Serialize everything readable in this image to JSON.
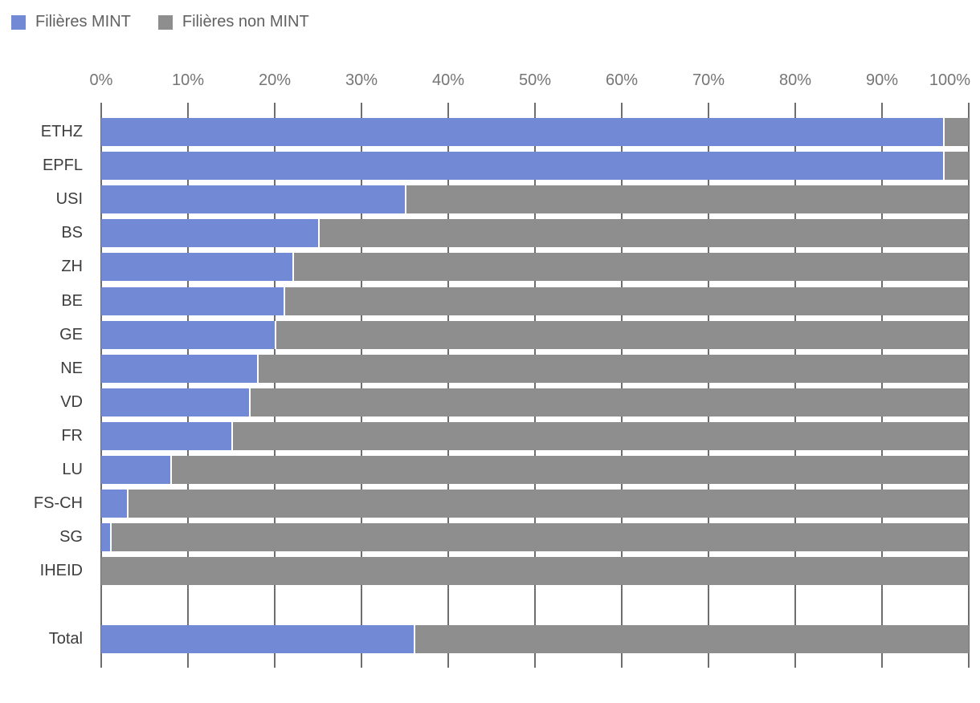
{
  "legend": {
    "items": [
      {
        "label": "Filières MINT",
        "color": "#7289d6"
      },
      {
        "label": "Filières non MINT",
        "color": "#8e8e8e"
      }
    ]
  },
  "chart_data": {
    "type": "bar",
    "orientation": "horizontal",
    "stacked": true,
    "unit": "%",
    "title": "",
    "categories": [
      "ETHZ",
      "EPFL",
      "USI",
      "BS",
      "ZH",
      "BE",
      "GE",
      "NE",
      "VD",
      "FR",
      "LU",
      "FS-CH",
      "SG",
      "IHEID",
      "",
      "Total"
    ],
    "series": [
      {
        "name": "Filières MINT",
        "color": "#7289d6",
        "values": [
          97,
          97,
          35,
          25,
          22,
          21,
          20,
          18,
          17,
          15,
          8,
          3,
          1,
          0,
          null,
          36
        ]
      },
      {
        "name": "Filières non MINT",
        "color": "#8e8e8e",
        "values": [
          3,
          3,
          65,
          75,
          78,
          79,
          80,
          82,
          83,
          85,
          92,
          97,
          99,
          100,
          null,
          64
        ]
      }
    ],
    "x_axis": {
      "position": "top",
      "min": 0,
      "max": 100,
      "tick_step": 10,
      "tick_labels": [
        "0%",
        "10%",
        "20%",
        "30%",
        "40%",
        "50%",
        "60%",
        "70%",
        "80%",
        "90%",
        "100%"
      ]
    },
    "grid": true,
    "legend_position": "top-left"
  },
  "colors": {
    "mint": "#7289d6",
    "non_mint": "#8e8e8e",
    "gridline": "#6e6e6e",
    "axis_label": "#757575",
    "category_label": "#3d3d3d",
    "legend_label": "#616161",
    "background": "#ffffff",
    "segment_gap": "#ffffff"
  }
}
